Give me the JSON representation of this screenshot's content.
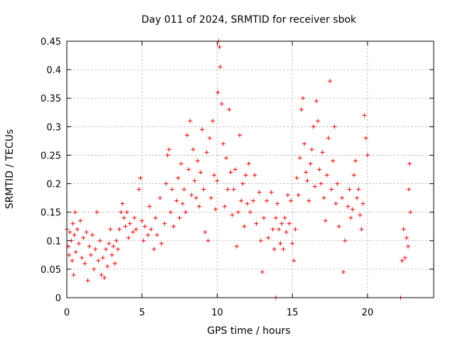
{
  "chart_data": {
    "type": "scatter",
    "title": "Day 011 of 2024, SRMTID for receiver sbok",
    "xlabel": "GPS time / hours",
    "ylabel": "SRMTID / TECUs",
    "xlim": [
      0,
      24.4
    ],
    "ylim": [
      0,
      0.45
    ],
    "x_ticks": [
      0,
      5,
      10,
      15,
      20
    ],
    "y_ticks": [
      0,
      0.05,
      0.1,
      0.15,
      0.2,
      0.25,
      0.3,
      0.35,
      0.4,
      0.45
    ],
    "y_tick_labels": [
      "0",
      "0.05",
      "0.1",
      "0.15",
      "0.2",
      "0.25",
      "0.3",
      "0.35",
      "0.4",
      "0.45"
    ],
    "grid": true,
    "marker": "+",
    "color": "#ff0000",
    "series": [
      {
        "name": "SRMTID",
        "points": [
          [
            0.0,
            0.12
          ],
          [
            0.1,
            0.09
          ],
          [
            0.15,
            0.075
          ],
          [
            0.2,
            0.115
          ],
          [
            0.3,
            0.1
          ],
          [
            0.35,
            0.065
          ],
          [
            0.4,
            0.13
          ],
          [
            0.45,
            0.04
          ],
          [
            0.5,
            0.11
          ],
          [
            0.55,
            0.15
          ],
          [
            0.6,
            0.08
          ],
          [
            0.7,
            0.12
          ],
          [
            0.8,
            0.095
          ],
          [
            0.9,
            0.135
          ],
          [
            1.0,
            0.07
          ],
          [
            1.1,
            0.105
          ],
          [
            1.2,
            0.06
          ],
          [
            1.3,
            0.115
          ],
          [
            1.4,
            0.03
          ],
          [
            1.5,
            0.09
          ],
          [
            1.6,
            0.075
          ],
          [
            1.7,
            0.11
          ],
          [
            1.8,
            0.05
          ],
          [
            1.9,
            0.085
          ],
          [
            2.0,
            0.15
          ],
          [
            2.1,
            0.065
          ],
          [
            2.2,
            0.1
          ],
          [
            2.3,
            0.04
          ],
          [
            2.4,
            0.07
          ],
          [
            2.5,
            0.035
          ],
          [
            2.6,
            0.085
          ],
          [
            2.7,
            0.055
          ],
          [
            2.8,
            0.095
          ],
          [
            2.9,
            0.12
          ],
          [
            3.0,
            0.075
          ],
          [
            3.1,
            0.09
          ],
          [
            3.2,
            0.06
          ],
          [
            3.3,
            0.1
          ],
          [
            3.4,
            0.085
          ],
          [
            3.5,
            0.12
          ],
          [
            3.6,
            0.15
          ],
          [
            3.7,
            0.165
          ],
          [
            3.8,
            0.14
          ],
          [
            3.9,
            0.125
          ],
          [
            4.0,
            0.15
          ],
          [
            4.1,
            0.105
          ],
          [
            4.2,
            0.13
          ],
          [
            4.4,
            0.115
          ],
          [
            4.5,
            0.14
          ],
          [
            4.6,
            0.12
          ],
          [
            4.8,
            0.19
          ],
          [
            4.9,
            0.21
          ],
          [
            5.0,
            0.135
          ],
          [
            5.1,
            0.1
          ],
          [
            5.2,
            0.125
          ],
          [
            5.4,
            0.11
          ],
          [
            5.5,
            0.16
          ],
          [
            5.6,
            0.12
          ],
          [
            5.8,
            0.085
          ],
          [
            5.9,
            0.14
          ],
          [
            6.0,
            0.11
          ],
          [
            6.2,
            0.175
          ],
          [
            6.3,
            0.095
          ],
          [
            6.5,
            0.13
          ],
          [
            6.6,
            0.2
          ],
          [
            6.7,
            0.25
          ],
          [
            6.8,
            0.26
          ],
          [
            6.9,
            0.15
          ],
          [
            7.0,
            0.19
          ],
          [
            7.1,
            0.125
          ],
          [
            7.3,
            0.17
          ],
          [
            7.4,
            0.21
          ],
          [
            7.5,
            0.14
          ],
          [
            7.6,
            0.235
          ],
          [
            7.7,
            0.165
          ],
          [
            7.8,
            0.19
          ],
          [
            7.9,
            0.15
          ],
          [
            8.0,
            0.285
          ],
          [
            8.1,
            0.225
          ],
          [
            8.2,
            0.31
          ],
          [
            8.3,
            0.18
          ],
          [
            8.4,
            0.26
          ],
          [
            8.5,
            0.205
          ],
          [
            8.6,
            0.175
          ],
          [
            8.7,
            0.24
          ],
          [
            8.8,
            0.16
          ],
          [
            8.9,
            0.22
          ],
          [
            9.0,
            0.295
          ],
          [
            9.1,
            0.19
          ],
          [
            9.2,
            0.115
          ],
          [
            9.3,
            0.255
          ],
          [
            9.4,
            0.1
          ],
          [
            9.5,
            0.28
          ],
          [
            9.6,
            0.175
          ],
          [
            9.7,
            0.31
          ],
          [
            9.8,
            0.215
          ],
          [
            9.9,
            0.155
          ],
          [
            10.0,
            0.205
          ],
          [
            10.05,
            0.36
          ],
          [
            10.1,
            0.45
          ],
          [
            10.15,
            0.44
          ],
          [
            10.2,
            0.405
          ],
          [
            10.3,
            0.34
          ],
          [
            10.4,
            0.27
          ],
          [
            10.5,
            0.16
          ],
          [
            10.6,
            0.245
          ],
          [
            10.7,
            0.19
          ],
          [
            10.8,
            0.33
          ],
          [
            10.9,
            0.22
          ],
          [
            11.0,
            0.145
          ],
          [
            11.1,
            0.19
          ],
          [
            11.2,
            0.225
          ],
          [
            11.3,
            0.09
          ],
          [
            11.4,
            0.15
          ],
          [
            11.5,
            0.285
          ],
          [
            11.6,
            0.17
          ],
          [
            11.7,
            0.2
          ],
          [
            11.8,
            0.125
          ],
          [
            11.9,
            0.215
          ],
          [
            12.0,
            0.165
          ],
          [
            12.1,
            0.235
          ],
          [
            12.2,
            0.15
          ],
          [
            12.4,
            0.17
          ],
          [
            12.5,
            0.215
          ],
          [
            12.6,
            0.13
          ],
          [
            12.8,
            0.185
          ],
          [
            12.9,
            0.1
          ],
          [
            13.0,
            0.045
          ],
          [
            13.1,
            0.14
          ],
          [
            13.3,
            0.17
          ],
          [
            13.4,
            0.105
          ],
          [
            13.6,
            0.185
          ],
          [
            13.7,
            0.12
          ],
          [
            13.8,
            0.085
          ],
          [
            13.9,
            0.14
          ],
          [
            14.0,
            0.165
          ],
          [
            14.1,
            0.12
          ],
          [
            14.2,
            0.095
          ],
          [
            14.3,
            0.13
          ],
          [
            14.4,
            0.085
          ],
          [
            14.5,
            0.14
          ],
          [
            14.6,
            0.115
          ],
          [
            14.7,
            0.18
          ],
          [
            14.8,
            0.13
          ],
          [
            14.9,
            0.17
          ],
          [
            15.0,
            0.095
          ],
          [
            15.1,
            0.065
          ],
          [
            15.2,
            0.12
          ],
          [
            15.3,
            0.21
          ],
          [
            15.4,
            0.18
          ],
          [
            15.5,
            0.245
          ],
          [
            15.6,
            0.33
          ],
          [
            15.7,
            0.35
          ],
          [
            15.8,
            0.27
          ],
          [
            15.9,
            0.22
          ],
          [
            16.0,
            0.205
          ],
          [
            16.1,
            0.17
          ],
          [
            16.2,
            0.235
          ],
          [
            16.3,
            0.26
          ],
          [
            16.4,
            0.3
          ],
          [
            16.5,
            0.195
          ],
          [
            16.6,
            0.345
          ],
          [
            16.7,
            0.31
          ],
          [
            16.8,
            0.225
          ],
          [
            16.9,
            0.2
          ],
          [
            17.0,
            0.255
          ],
          [
            17.1,
            0.175
          ],
          [
            17.2,
            0.135
          ],
          [
            17.3,
            0.215
          ],
          [
            17.4,
            0.28
          ],
          [
            17.5,
            0.38
          ],
          [
            17.6,
            0.19
          ],
          [
            17.7,
            0.24
          ],
          [
            17.8,
            0.3
          ],
          [
            17.9,
            0.165
          ],
          [
            18.0,
            0.2
          ],
          [
            18.1,
            0.125
          ],
          [
            18.3,
            0.175
          ],
          [
            18.4,
            0.045
          ],
          [
            18.5,
            0.1
          ],
          [
            18.7,
            0.16
          ],
          [
            18.8,
            0.19
          ],
          [
            18.9,
            0.14
          ],
          [
            19.0,
            0.155
          ],
          [
            19.1,
            0.215
          ],
          [
            19.2,
            0.24
          ],
          [
            19.3,
            0.175
          ],
          [
            19.4,
            0.19
          ],
          [
            19.5,
            0.145
          ],
          [
            19.6,
            0.12
          ],
          [
            19.7,
            0.165
          ],
          [
            19.8,
            0.32
          ],
          [
            19.9,
            0.28
          ],
          [
            20.0,
            0.25
          ],
          [
            22.3,
            0.065
          ],
          [
            22.4,
            0.12
          ],
          [
            22.5,
            0.07
          ],
          [
            22.6,
            0.105
          ],
          [
            22.7,
            0.09
          ],
          [
            22.75,
            0.19
          ],
          [
            22.8,
            0.235
          ],
          [
            22.85,
            0.15
          ],
          [
            13.9,
            0.0
          ],
          [
            22.2,
            0.0
          ]
        ]
      }
    ]
  }
}
